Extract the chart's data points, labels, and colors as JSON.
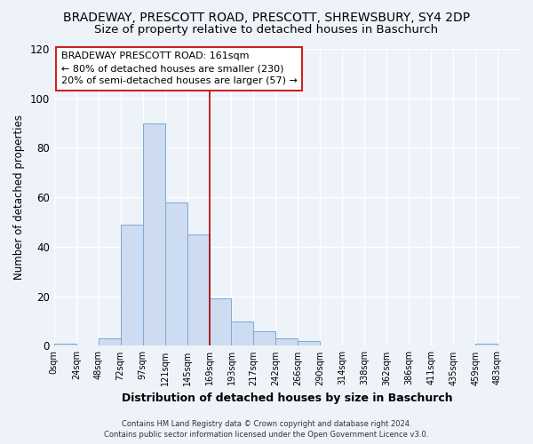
{
  "title": "BRADEWAY, PRESCOTT ROAD, PRESCOTT, SHREWSBURY, SY4 2DP",
  "subtitle": "Size of property relative to detached houses in Baschurch",
  "xlabel": "Distribution of detached houses by size in Baschurch",
  "ylabel": "Number of detached properties",
  "bar_color": "#cddcf0",
  "bar_edge_color": "#7aaad4",
  "bins": [
    "0sqm",
    "24sqm",
    "48sqm",
    "72sqm",
    "97sqm",
    "121sqm",
    "145sqm",
    "169sqm",
    "193sqm",
    "217sqm",
    "242sqm",
    "266sqm",
    "290sqm",
    "314sqm",
    "338sqm",
    "362sqm",
    "386sqm",
    "411sqm",
    "435sqm",
    "459sqm",
    "483sqm"
  ],
  "values": [
    1,
    0,
    3,
    49,
    90,
    58,
    45,
    19,
    10,
    6,
    3,
    2,
    0,
    0,
    0,
    0,
    0,
    0,
    0,
    1,
    0
  ],
  "ylim": [
    0,
    120
  ],
  "yticks": [
    0,
    20,
    40,
    60,
    80,
    100,
    120
  ],
  "vline_x_index": 7,
  "vline_color": "#aa0000",
  "annotation_title": "BRADEWAY PRESCOTT ROAD: 161sqm",
  "annotation_line1": "← 80% of detached houses are smaller (230)",
  "annotation_line2": "20% of semi-detached houses are larger (57) →",
  "footer1": "Contains HM Land Registry data © Crown copyright and database right 2024.",
  "footer2": "Contains public sector information licensed under the Open Government Licence v3.0.",
  "bg_color": "#eef2f9",
  "grid_color": "#ffffff",
  "title_fontsize": 10,
  "subtitle_fontsize": 9.5
}
